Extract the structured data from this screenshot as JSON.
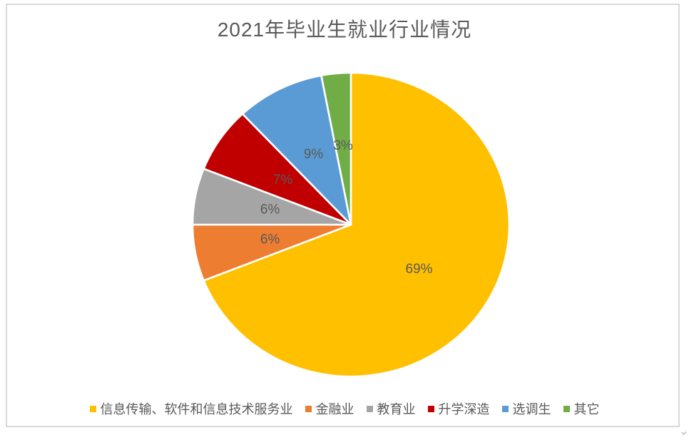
{
  "chart_data": {
    "type": "pie",
    "title": "2021年毕业生就业行业情况",
    "categories": [
      "信息传输、软件和信息技术服务业",
      "金融业",
      "教育业",
      "升学深造",
      "选调生",
      "其它"
    ],
    "values": [
      69,
      6,
      6,
      7,
      9,
      3
    ],
    "data_labels": [
      "69%",
      "6%",
      "6%",
      "7%",
      "9%",
      "3%"
    ],
    "colors": [
      "#FFC000",
      "#ED7D31",
      "#A5A5A5",
      "#C00000",
      "#5B9BD5",
      "#70AD47"
    ],
    "start_angle_deg": 0,
    "direction": "clockwise",
    "legend_position": "bottom",
    "slice_border_color": "#FFFFFF",
    "data_label_color": "#595959",
    "title_color": "#595959",
    "chart_border_color": "#D9D9D9"
  }
}
